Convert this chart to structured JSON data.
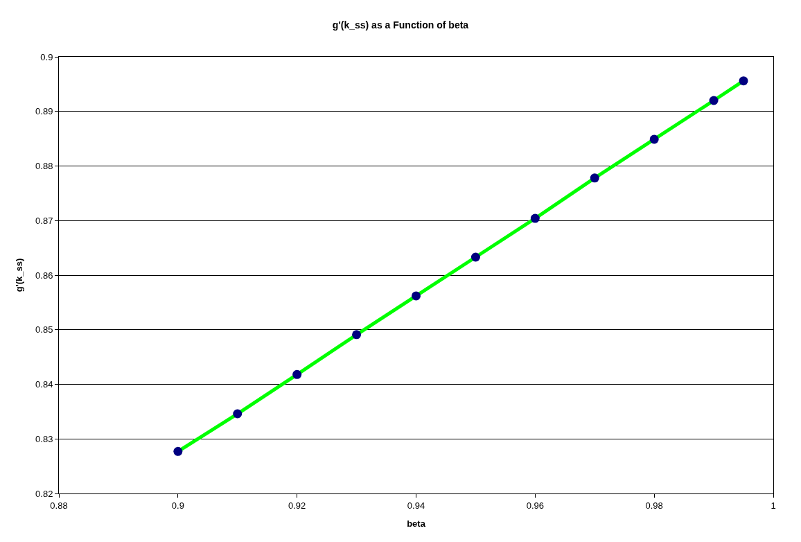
{
  "chart_data": {
    "type": "line",
    "title": "g'(k_ss) as a Function of beta",
    "xlabel": "beta",
    "ylabel": "g'(k_ss)",
    "x": [
      0.9,
      0.91,
      0.92,
      0.93,
      0.94,
      0.95,
      0.96,
      0.97,
      0.98,
      0.99,
      0.995
    ],
    "series": [
      {
        "color": "#00ff00",
        "colors": [
          "#000080",
          "#000080",
          "#000080",
          "#000080",
          "#000080",
          "#000080",
          "#000080",
          "#000080",
          "#000080",
          "#000080",
          "#000080"
        ],
        "values": [
          0.8277,
          0.8346,
          0.8418,
          0.8491,
          0.8562,
          0.8633,
          0.8704,
          0.8778,
          0.8849,
          0.892,
          0.8956
        ]
      }
    ],
    "xlim": [
      0.88,
      1
    ],
    "xticks": [
      0.88,
      0.9,
      0.92,
      0.94,
      0.96,
      0.98,
      1
    ],
    "ylim": [
      0.82,
      0.9
    ],
    "yticks": [
      0.82,
      0.83,
      0.84,
      0.85,
      0.86,
      0.87,
      0.88,
      0.89,
      0.9
    ],
    "grid": "y",
    "marker": "circle",
    "line_style": "solid"
  }
}
